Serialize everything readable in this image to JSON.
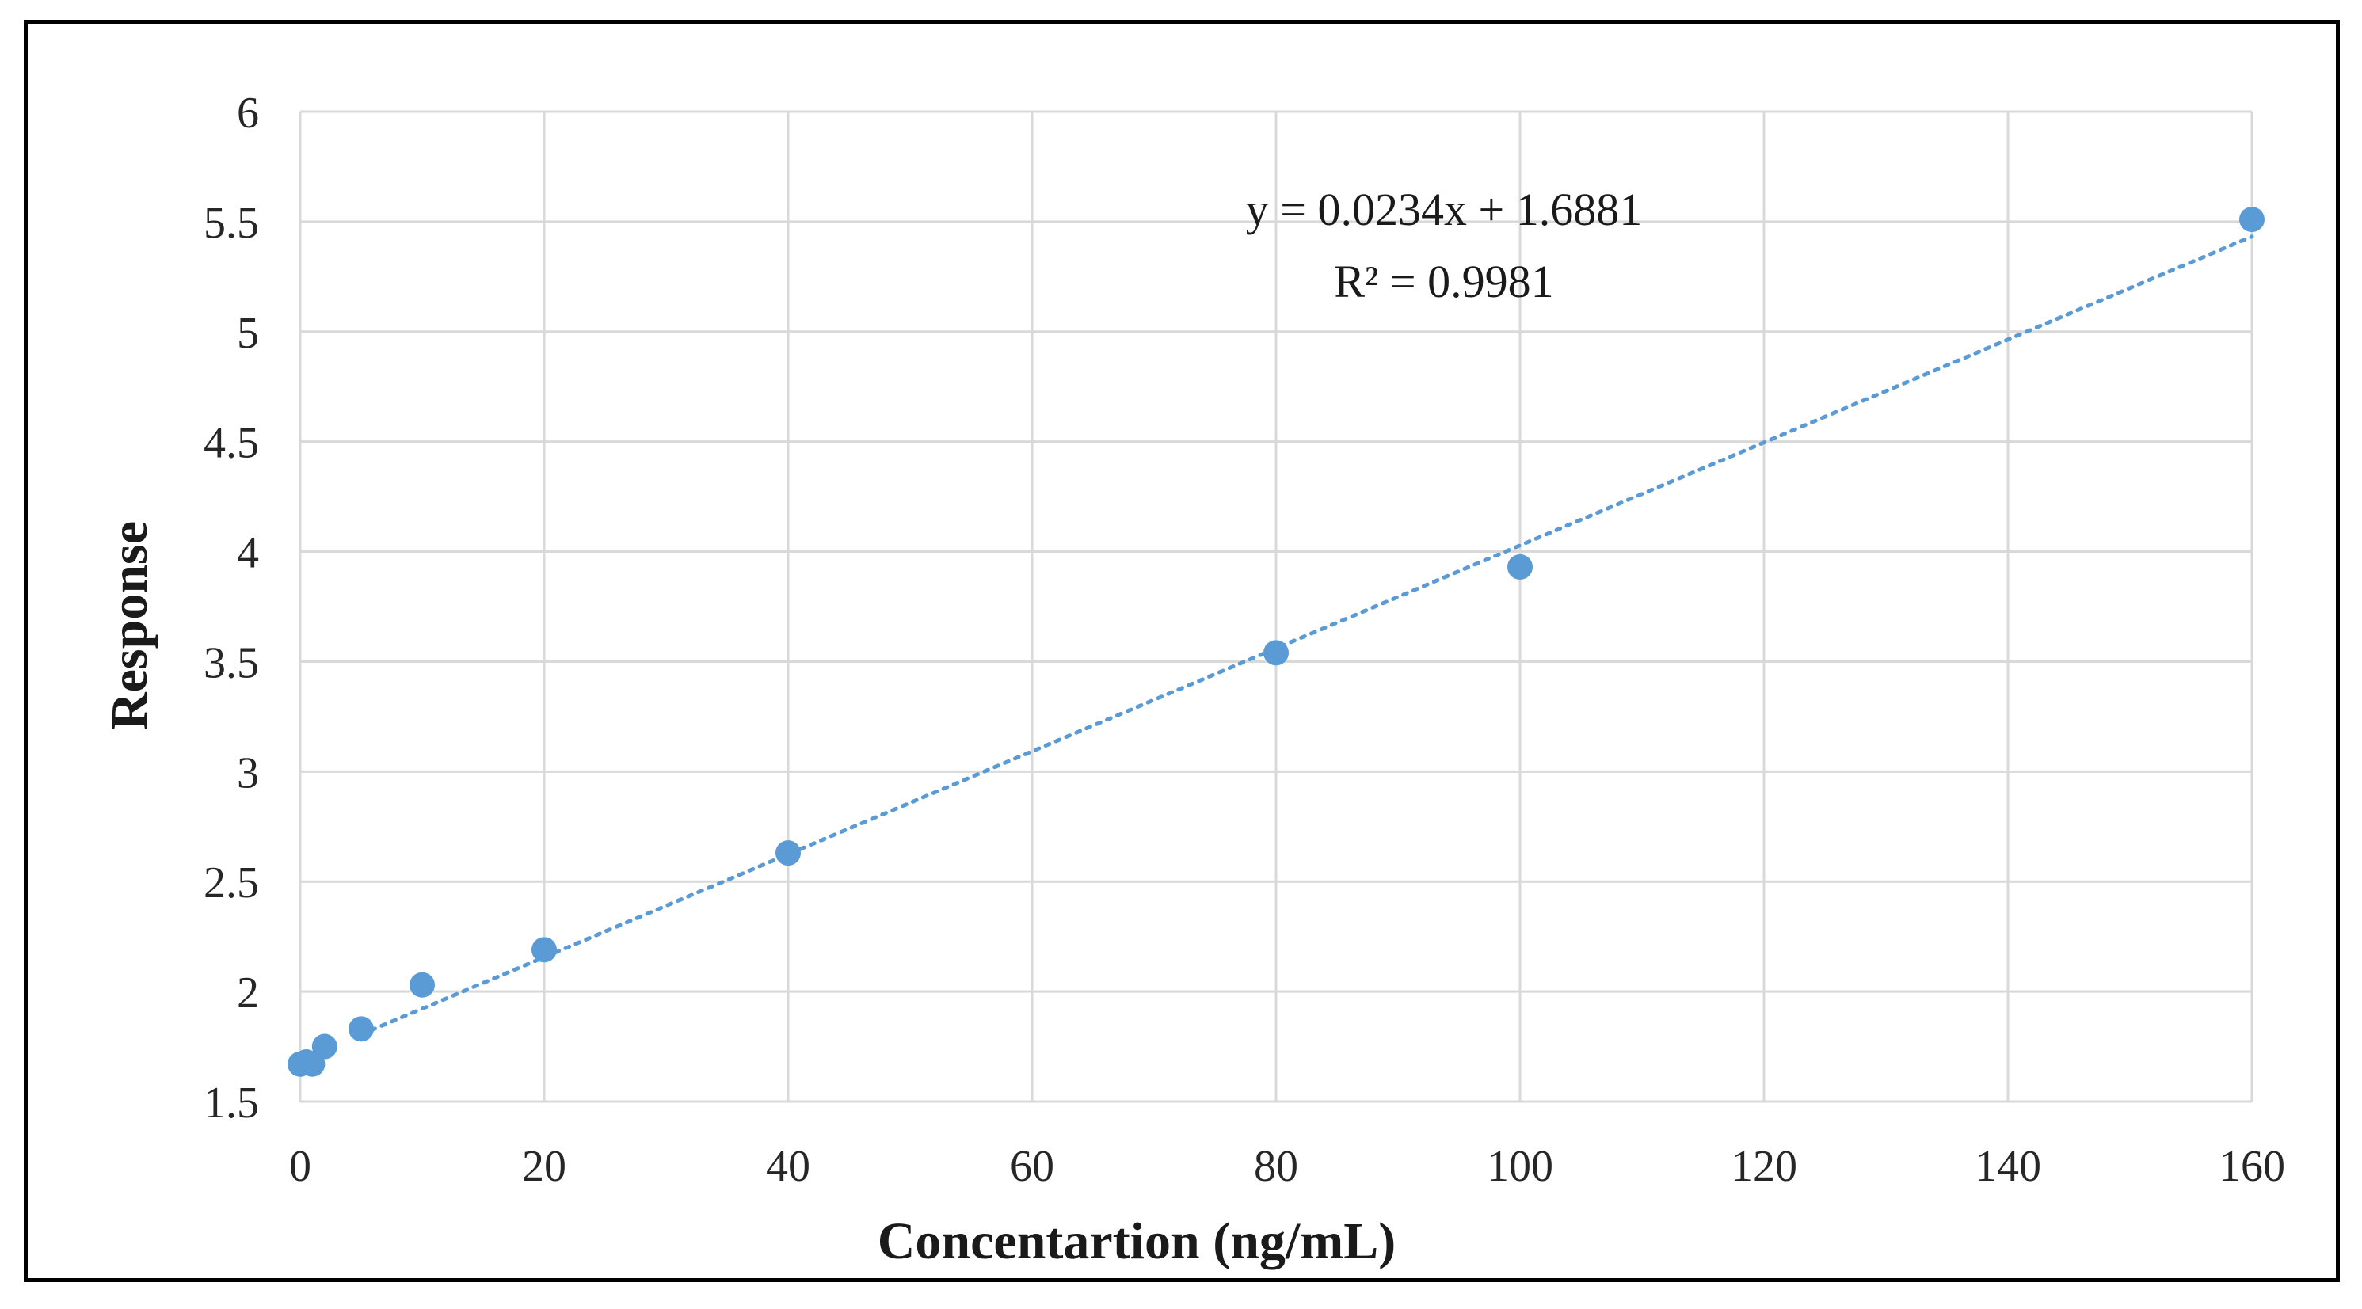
{
  "chart_data": {
    "type": "scatter",
    "title": "",
    "xlabel": "Concentartion (ng/mL)",
    "ylabel": "Response",
    "xlim": [
      0,
      160
    ],
    "ylim": [
      1.5,
      6
    ],
    "x_ticks": [
      0,
      20,
      40,
      60,
      80,
      100,
      120,
      140,
      160
    ],
    "y_ticks": [
      1.5,
      2,
      2.5,
      3,
      3.5,
      4,
      4.5,
      5,
      5.5,
      6
    ],
    "x_tick_labels": [
      "0",
      "20",
      "40",
      "60",
      "80",
      "100",
      "120",
      "140",
      "160"
    ],
    "y_tick_labels": [
      "1.5",
      "2",
      "2.5",
      "3",
      "3.5",
      "4",
      "4.5",
      "5",
      "5.5",
      "6"
    ],
    "grid": true,
    "series": [
      {
        "name": "Response",
        "x": [
          0,
          0.5,
          1,
          2,
          5,
          10,
          20,
          40,
          80,
          100,
          160
        ],
        "y": [
          1.67,
          1.68,
          1.67,
          1.75,
          1.83,
          2.03,
          2.19,
          2.63,
          3.54,
          3.93,
          5.51
        ]
      }
    ],
    "trendline": {
      "type": "linear",
      "slope": 0.0234,
      "intercept": 1.6881,
      "x_range": [
        5,
        160
      ],
      "equation": "y = 0.0234x + 1.6881",
      "r_squared_label": "R² = 0.9981"
    },
    "colors": {
      "marker": "#5b9bd5",
      "trendline": "#5b9bd5"
    }
  }
}
